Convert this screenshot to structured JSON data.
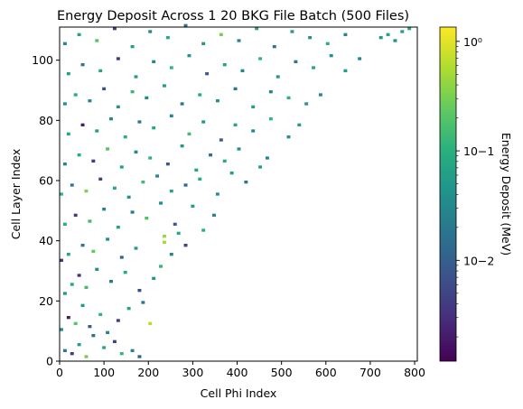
{
  "chart_data": {
    "type": "heatmap",
    "title": "Energy Deposit Across 1 20 BKG File Batch (500 Files)",
    "xlabel": "Cell Phi Index",
    "ylabel": "Cell Layer Index",
    "xlim": [
      0,
      806
    ],
    "ylim": [
      0,
      111
    ],
    "xticks": [
      0,
      100,
      200,
      300,
      400,
      500,
      600,
      700,
      800
    ],
    "yticks": [
      0,
      20,
      40,
      60,
      80,
      100
    ],
    "bin_width": {
      "phi": 8,
      "layer": 1
    },
    "colorbar": {
      "label": "Energy Deposit (MeV)",
      "scale": "log",
      "colormap": "viridis",
      "vmin": 0.0012,
      "vmax": 1.35,
      "ticks": [
        {
          "value": 0.01,
          "label": "10−2"
        },
        {
          "value": 0.1,
          "label": "10−1"
        },
        {
          "value": 1,
          "label": "10⁰"
        }
      ]
    },
    "pattern": "Sparse cell hits, filled mainly in the triangular region below the line Cell Layer Index = 0.137 × Cell Phi Index (upper-left triangle of the phi–layer plane); empty (white) region in the lower right.",
    "cells": [
      [
        8,
        3,
        0.02
      ],
      [
        24,
        2,
        0.004
      ],
      [
        40,
        5,
        0.06
      ],
      [
        56,
        1,
        0.3
      ],
      [
        72,
        8,
        0.015
      ],
      [
        96,
        4,
        0.08
      ],
      [
        120,
        6,
        0.005
      ],
      [
        136,
        2,
        0.12
      ],
      [
        160,
        3,
        0.03
      ],
      [
        176,
        1,
        0.01
      ],
      [
        0,
        10,
        0.04
      ],
      [
        16,
        14,
        0.002
      ],
      [
        32,
        12,
        0.2
      ],
      [
        48,
        18,
        0.05
      ],
      [
        64,
        11,
        0.009
      ],
      [
        88,
        15,
        0.11
      ],
      [
        104,
        9,
        0.03
      ],
      [
        128,
        13,
        0.004
      ],
      [
        152,
        17,
        0.07
      ],
      [
        184,
        19,
        0.02
      ],
      [
        200,
        12,
        0.6
      ],
      [
        8,
        22,
        0.05
      ],
      [
        24,
        25,
        0.08
      ],
      [
        40,
        28,
        0.003
      ],
      [
        56,
        24,
        0.15
      ],
      [
        80,
        30,
        0.04
      ],
      [
        112,
        26,
        0.02
      ],
      [
        144,
        29,
        0.09
      ],
      [
        176,
        23,
        0.006
      ],
      [
        208,
        27,
        0.05
      ],
      [
        224,
        31,
        0.12
      ],
      [
        0,
        33,
        0.003
      ],
      [
        16,
        35,
        0.07
      ],
      [
        48,
        38,
        0.02
      ],
      [
        72,
        36,
        0.25
      ],
      [
        104,
        40,
        0.04
      ],
      [
        136,
        34,
        0.011
      ],
      [
        168,
        37,
        0.06
      ],
      [
        232,
        39,
        0.5
      ],
      [
        232,
        41,
        0.45
      ],
      [
        248,
        35,
        0.03
      ],
      [
        264,
        42,
        0.08
      ],
      [
        280,
        38,
        0.005
      ],
      [
        8,
        45,
        0.09
      ],
      [
        32,
        48,
        0.004
      ],
      [
        64,
        46,
        0.14
      ],
      [
        96,
        50,
        0.03
      ],
      [
        128,
        44,
        0.07
      ],
      [
        160,
        49,
        0.02
      ],
      [
        192,
        47,
        0.18
      ],
      [
        224,
        52,
        0.04
      ],
      [
        256,
        45,
        0.009
      ],
      [
        296,
        51,
        0.06
      ],
      [
        320,
        43,
        0.1
      ],
      [
        344,
        48,
        0.03
      ],
      [
        0,
        55,
        0.12
      ],
      [
        24,
        58,
        0.02
      ],
      [
        56,
        56,
        0.35
      ],
      [
        88,
        60,
        0.005
      ],
      [
        120,
        57,
        0.08
      ],
      [
        152,
        54,
        0.04
      ],
      [
        184,
        59,
        0.15
      ],
      [
        216,
        61,
        0.03
      ],
      [
        248,
        56,
        0.07
      ],
      [
        280,
        58,
        0.012
      ],
      [
        312,
        60,
        0.09
      ],
      [
        352,
        55,
        0.04
      ],
      [
        384,
        62,
        0.06
      ],
      [
        416,
        59,
        0.02
      ],
      [
        8,
        65,
        0.03
      ],
      [
        40,
        68,
        0.09
      ],
      [
        72,
        66,
        0.004
      ],
      [
        104,
        70,
        0.2
      ],
      [
        136,
        64,
        0.06
      ],
      [
        168,
        69,
        0.03
      ],
      [
        200,
        67,
        0.11
      ],
      [
        240,
        65,
        0.008
      ],
      [
        272,
        71,
        0.05
      ],
      [
        304,
        63,
        0.07
      ],
      [
        336,
        68,
        0.015
      ],
      [
        368,
        66,
        0.09
      ],
      [
        400,
        70,
        0.04
      ],
      [
        448,
        64,
        0.06
      ],
      [
        464,
        67,
        0.03
      ],
      [
        16,
        75,
        0.07
      ],
      [
        48,
        78,
        0.002
      ],
      [
        80,
        76,
        0.06
      ],
      [
        112,
        80,
        0.03
      ],
      [
        144,
        74,
        0.1
      ],
      [
        176,
        79,
        0.02
      ],
      [
        208,
        77,
        0.08
      ],
      [
        248,
        81,
        0.03
      ],
      [
        288,
        75,
        0.15
      ],
      [
        320,
        79,
        0.05
      ],
      [
        360,
        73,
        0.009
      ],
      [
        392,
        78,
        0.07
      ],
      [
        432,
        76,
        0.03
      ],
      [
        472,
        80,
        0.12
      ],
      [
        512,
        74,
        0.04
      ],
      [
        536,
        78,
        0.06
      ],
      [
        8,
        85,
        0.04
      ],
      [
        32,
        88,
        0.09
      ],
      [
        64,
        86,
        0.03
      ],
      [
        96,
        90,
        0.007
      ],
      [
        128,
        84,
        0.05
      ],
      [
        160,
        89,
        0.13
      ],
      [
        192,
        87,
        0.03
      ],
      [
        232,
        91,
        0.06
      ],
      [
        272,
        85,
        0.02
      ],
      [
        312,
        88,
        0.09
      ],
      [
        352,
        86,
        0.04
      ],
      [
        392,
        90,
        0.018
      ],
      [
        432,
        84,
        0.06
      ],
      [
        472,
        89,
        0.03
      ],
      [
        512,
        87,
        0.1
      ],
      [
        552,
        85,
        0.05
      ],
      [
        584,
        88,
        0.03
      ],
      [
        16,
        95,
        0.06
      ],
      [
        48,
        98,
        0.02
      ],
      [
        88,
        96,
        0.08
      ],
      [
        128,
        100,
        0.004
      ],
      [
        168,
        94,
        0.06
      ],
      [
        208,
        99,
        0.03
      ],
      [
        248,
        97,
        0.11
      ],
      [
        288,
        101,
        0.05
      ],
      [
        328,
        95,
        0.009
      ],
      [
        368,
        98,
        0.07
      ],
      [
        408,
        96,
        0.03
      ],
      [
        448,
        100,
        0.12
      ],
      [
        488,
        94,
        0.05
      ],
      [
        528,
        99,
        0.02
      ],
      [
        568,
        97,
        0.08
      ],
      [
        608,
        101,
        0.04
      ],
      [
        640,
        96,
        0.06
      ],
      [
        672,
        100,
        0.03
      ],
      [
        8,
        105,
        0.03
      ],
      [
        40,
        108,
        0.07
      ],
      [
        80,
        106,
        0.2
      ],
      [
        120,
        110,
        0.004
      ],
      [
        160,
        104,
        0.06
      ],
      [
        200,
        109,
        0.03
      ],
      [
        240,
        107,
        0.09
      ],
      [
        280,
        111,
        0.015
      ],
      [
        320,
        105,
        0.05
      ],
      [
        360,
        108,
        0.3
      ],
      [
        400,
        106,
        0.03
      ],
      [
        440,
        110,
        0.07
      ],
      [
        480,
        104,
        0.02
      ],
      [
        520,
        109,
        0.06
      ],
      [
        560,
        107,
        0.04
      ],
      [
        600,
        105,
        0.1
      ],
      [
        640,
        108,
        0.03
      ],
      [
        720,
        107,
        0.05
      ],
      [
        736,
        108,
        0.07
      ],
      [
        752,
        106,
        0.04
      ],
      [
        768,
        109,
        0.06
      ],
      [
        784,
        110,
        0.08
      ]
    ]
  }
}
